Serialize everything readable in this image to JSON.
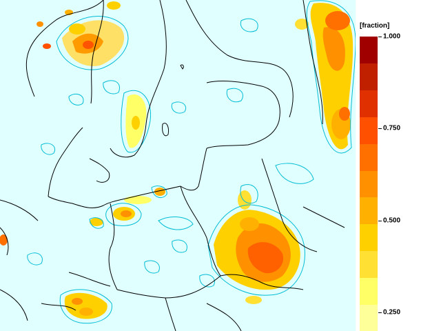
{
  "map": {
    "background_color": "#e0ffff",
    "coastline_color": "#000000",
    "contour_color": "#00bcd4"
  },
  "legend": {
    "unit": "[fraction]",
    "min": 0.2,
    "max": 1.0,
    "colors": [
      "#ffff99",
      "#ffff66",
      "#ffe033",
      "#ffd000",
      "#ffb000",
      "#ff9000",
      "#ff7000",
      "#ff5000",
      "#e03000",
      "#c02000",
      "#a00000"
    ],
    "ticks": [
      {
        "value": 1.0,
        "label": "1.000"
      },
      {
        "value": 0.75,
        "label": "0.750"
      },
      {
        "value": 0.5,
        "label": "0.500"
      },
      {
        "value": 0.25,
        "label": "0.250"
      }
    ]
  }
}
